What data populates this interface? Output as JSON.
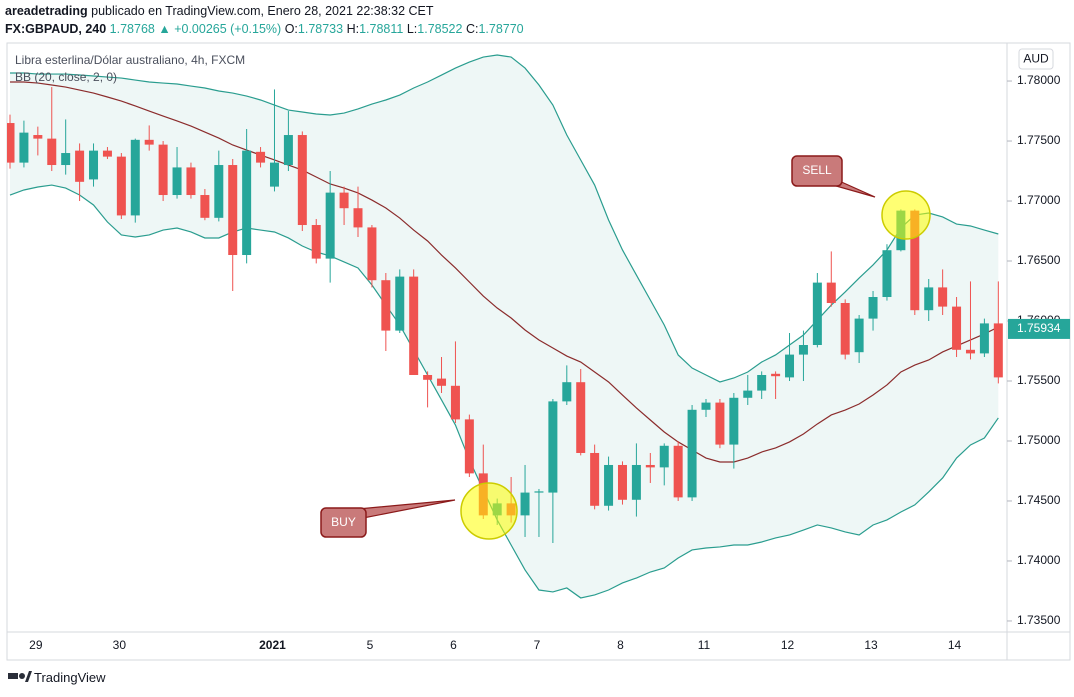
{
  "header": {
    "author": "areadetrading",
    "published": "publicado en TradingView.com, Enero 28, 2021 22:38:32 CET",
    "symbol": "FX:GBPAUD, 240",
    "price": "1.78768",
    "change": "▲ +0.00265 (+0.15%)",
    "ohlc": [
      {
        "key": "O:",
        "value": "1.78733"
      },
      {
        "key": "H:",
        "value": "1.78811"
      },
      {
        "key": "L:",
        "value": "1.78522"
      },
      {
        "key": "C:",
        "value": "1.78770"
      }
    ]
  },
  "footer": {
    "brand": "TradingView"
  },
  "chart_data": {
    "type": "candlestick",
    "title": "Libra esterlina/Dólar australiano, 4h, FXCM",
    "indicator": "BB (20, close, 2, 0)",
    "currency": "AUD",
    "categories": [
      null,
      null,
      "29",
      null,
      null,
      null,
      null,
      null,
      "30",
      null,
      null,
      null,
      null,
      null,
      null,
      null,
      null,
      null,
      null,
      "2021",
      null,
      null,
      null,
      null,
      null,
      null,
      "5",
      null,
      null,
      null,
      null,
      null,
      "6",
      null,
      null,
      null,
      null,
      null,
      "7",
      null,
      null,
      null,
      null,
      null,
      "8",
      null,
      null,
      null,
      null,
      null,
      "11",
      null,
      null,
      null,
      null,
      null,
      "12",
      null,
      null,
      null,
      null,
      null,
      "13",
      null,
      null,
      null,
      null,
      null,
      "14",
      null,
      null,
      null
    ],
    "up_color": "#26a69a",
    "down_color": "#ef5350",
    "candles": {
      "open": [
        1.7765,
        1.7732,
        1.7755,
        1.7752,
        1.773,
        1.7742,
        1.7718,
        1.7742,
        1.7737,
        1.7688,
        1.7751,
        1.7747,
        1.7705,
        1.7728,
        1.7705,
        1.7686,
        1.773,
        1.7655,
        1.7741,
        1.7712,
        1.773,
        1.7755,
        1.768,
        1.7652,
        1.7707,
        1.7694,
        1.7678,
        1.7634,
        1.7592,
        1.7637,
        1.7555,
        1.7552,
        1.7546,
        1.7518,
        1.7473,
        1.7438,
        1.7448,
        1.7438,
        1.7457,
        1.7457,
        1.7533,
        1.7549,
        1.749,
        1.7446,
        1.748,
        1.7451,
        1.748,
        1.7478,
        1.7496,
        1.7453,
        1.7526,
        1.7532,
        1.7497,
        1.7536,
        1.7542,
        1.7556,
        1.7553,
        1.7572,
        1.758,
        1.7632,
        1.7615,
        1.7574,
        1.7602,
        1.762,
        1.7659,
        1.7692,
        1.7609,
        1.7628,
        1.7612,
        1.7576,
        1.7573,
        1.7598
      ],
      "high": [
        1.7772,
        1.7767,
        1.7762,
        1.7795,
        1.7768,
        1.7748,
        1.7748,
        1.7745,
        1.774,
        1.7752,
        1.7763,
        1.775,
        1.7745,
        1.7732,
        1.771,
        1.7742,
        1.7735,
        1.776,
        1.7745,
        1.7793,
        1.7775,
        1.7758,
        1.7685,
        1.7725,
        1.7712,
        1.7712,
        1.768,
        1.764,
        1.7643,
        1.7643,
        1.7558,
        1.757,
        1.7583,
        1.7522,
        1.7497,
        1.7452,
        1.747,
        1.748,
        1.746,
        1.7535,
        1.7563,
        1.756,
        1.7497,
        1.7487,
        1.7483,
        1.7498,
        1.749,
        1.7498,
        1.75,
        1.753,
        1.7535,
        1.7535,
        1.754,
        1.7555,
        1.7558,
        1.7558,
        1.759,
        1.7592,
        1.764,
        1.7658,
        1.7618,
        1.7605,
        1.7625,
        1.7664,
        1.7693,
        1.7693,
        1.7635,
        1.7643,
        1.762,
        1.7633,
        1.7602,
        1.7633
      ],
      "low": [
        1.7727,
        1.7728,
        1.7738,
        1.7725,
        1.7722,
        1.77,
        1.7712,
        1.7735,
        1.7685,
        1.7682,
        1.7742,
        1.77,
        1.7702,
        1.7702,
        1.7684,
        1.7683,
        1.7625,
        1.7648,
        1.7728,
        1.7708,
        1.7725,
        1.7675,
        1.7648,
        1.7632,
        1.768,
        1.767,
        1.7628,
        1.7575,
        1.759,
        1.7555,
        1.7528,
        1.754,
        1.7515,
        1.747,
        1.7435,
        1.743,
        1.7432,
        1.742,
        1.742,
        1.7415,
        1.753,
        1.7488,
        1.7443,
        1.7442,
        1.7447,
        1.7437,
        1.7465,
        1.7463,
        1.745,
        1.745,
        1.752,
        1.7494,
        1.7477,
        1.753,
        1.7535,
        1.7535,
        1.755,
        1.755,
        1.7578,
        1.7612,
        1.7568,
        1.7565,
        1.7592,
        1.7617,
        1.7658,
        1.7605,
        1.76,
        1.7605,
        1.757,
        1.7568,
        1.757,
        1.7548
      ],
      "close": [
        1.7732,
        1.7757,
        1.7752,
        1.773,
        1.774,
        1.7716,
        1.7742,
        1.7737,
        1.7688,
        1.7751,
        1.7747,
        1.7705,
        1.7728,
        1.7705,
        1.7686,
        1.773,
        1.7655,
        1.7742,
        1.7732,
        1.7732,
        1.7755,
        1.768,
        1.7652,
        1.7707,
        1.7694,
        1.7678,
        1.7634,
        1.7592,
        1.7637,
        1.7555,
        1.7551,
        1.7546,
        1.7518,
        1.7473,
        1.7438,
        1.7448,
        1.7438,
        1.7457,
        1.7458,
        1.7533,
        1.7549,
        1.749,
        1.7446,
        1.748,
        1.7451,
        1.748,
        1.7478,
        1.7496,
        1.7453,
        1.7526,
        1.7532,
        1.7497,
        1.7536,
        1.7542,
        1.7555,
        1.7554,
        1.7572,
        1.758,
        1.7632,
        1.7615,
        1.7572,
        1.7602,
        1.762,
        1.7659,
        1.7692,
        1.7609,
        1.7628,
        1.7612,
        1.7576,
        1.7573,
        1.7598,
        1.7553
      ]
    },
    "series": [
      {
        "color": "#2a9d8f",
        "values": [
          1.78067,
          1.78067,
          1.78058,
          1.78058,
          1.78058,
          1.7805,
          1.78042,
          1.78033,
          1.78025,
          1.78008,
          1.77992,
          1.77983,
          1.77975,
          1.77958,
          1.77942,
          1.77917,
          1.779,
          1.77875,
          1.77842,
          1.778,
          1.77758,
          1.77742,
          1.77725,
          1.77717,
          1.77733,
          1.77767,
          1.77808,
          1.77842,
          1.77883,
          1.77942,
          1.77992,
          1.7805,
          1.78108,
          1.78158,
          1.782,
          1.78217,
          1.782,
          1.78108,
          1.77967,
          1.778,
          1.7755,
          1.77342,
          1.77133,
          1.76842,
          1.76592,
          1.76383,
          1.76175,
          1.75967,
          1.75717,
          1.75608,
          1.7555,
          1.75492,
          1.75525,
          1.75575,
          1.75658,
          1.75717,
          1.758,
          1.75883,
          1.76008,
          1.76133,
          1.76242,
          1.76358,
          1.76467,
          1.76592,
          1.76775,
          1.76883,
          1.769,
          1.76867,
          1.76808,
          1.76792,
          1.76758,
          1.76725
        ]
      },
      {
        "color": "#8b2c2c",
        "values": [
          1.77992,
          1.77992,
          1.77983,
          1.77967,
          1.7795,
          1.77925,
          1.779,
          1.77867,
          1.77833,
          1.77792,
          1.7775,
          1.77708,
          1.77667,
          1.77625,
          1.77575,
          1.77525,
          1.77467,
          1.77425,
          1.77383,
          1.77342,
          1.773,
          1.77258,
          1.772,
          1.77142,
          1.77108,
          1.77067,
          1.77008,
          1.76942,
          1.76858,
          1.76758,
          1.76667,
          1.7655,
          1.76442,
          1.76325,
          1.76208,
          1.76108,
          1.76025,
          1.75925,
          1.75842,
          1.75775,
          1.75708,
          1.75658,
          1.75575,
          1.75492,
          1.75383,
          1.75275,
          1.75175,
          1.75075,
          1.74992,
          1.74925,
          1.74858,
          1.74825,
          1.74825,
          1.74858,
          1.74908,
          1.74942,
          1.74992,
          1.75058,
          1.75142,
          1.75217,
          1.75258,
          1.75308,
          1.75383,
          1.75467,
          1.75575,
          1.75633,
          1.75675,
          1.75742,
          1.75792,
          1.75842,
          1.75892,
          1.7595
        ]
      },
      {
        "color": "#2a9d8f",
        "values": [
          1.7705,
          1.77092,
          1.77117,
          1.77133,
          1.77108,
          1.7705,
          1.76967,
          1.76825,
          1.76717,
          1.767,
          1.76717,
          1.76758,
          1.76775,
          1.76742,
          1.76692,
          1.76692,
          1.76742,
          1.76775,
          1.76758,
          1.76742,
          1.76692,
          1.76625,
          1.76575,
          1.76542,
          1.76492,
          1.76442,
          1.763,
          1.76133,
          1.75967,
          1.75758,
          1.7555,
          1.75342,
          1.75133,
          1.74842,
          1.74592,
          1.74342,
          1.74133,
          1.73925,
          1.73758,
          1.73742,
          1.73775,
          1.73692,
          1.73717,
          1.73758,
          1.73817,
          1.73858,
          1.73908,
          1.73942,
          1.74025,
          1.74092,
          1.74108,
          1.74117,
          1.74133,
          1.74133,
          1.74158,
          1.74192,
          1.74217,
          1.74258,
          1.743,
          1.74275,
          1.74242,
          1.74217,
          1.743,
          1.74342,
          1.74408,
          1.74467,
          1.74575,
          1.74692,
          1.74858,
          1.74967,
          1.75025,
          1.75192
        ]
      }
    ],
    "band_fill": "#eef7f6",
    "ylim": [
      1.73408,
      1.78317
    ],
    "yticks": [
      {
        "value": 1.735,
        "label": "1.73500"
      },
      {
        "value": 1.74,
        "label": "1.74000"
      },
      {
        "value": 1.745,
        "label": "1.74500"
      },
      {
        "value": 1.75,
        "label": "1.75000"
      },
      {
        "value": 1.755,
        "label": "1.75500"
      },
      {
        "value": 1.76,
        "label": "1.76000"
      },
      {
        "value": 1.765,
        "label": "1.76500"
      },
      {
        "value": 1.77,
        "label": "1.77000"
      },
      {
        "value": 1.775,
        "label": "1.77500"
      },
      {
        "value": 1.78,
        "label": "1.78000"
      }
    ],
    "grid": false,
    "last_price": 1.75934,
    "last_price_color": "#26a69a",
    "annotations": [
      {
        "text": "BUY"
      },
      {
        "text": "SELL"
      }
    ]
  }
}
